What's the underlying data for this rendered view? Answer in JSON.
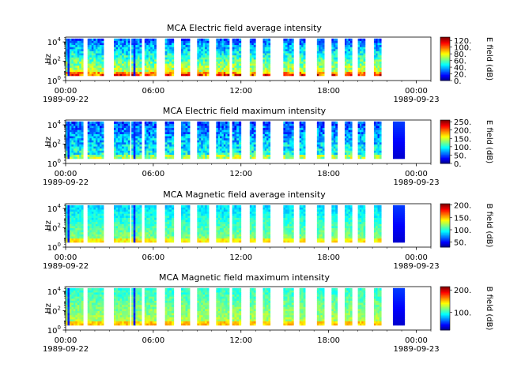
{
  "chart_data": [
    {
      "type": "heatmap",
      "title": "MCA  Electric field average intensity",
      "ylabel": "Hz",
      "yscale": "log",
      "ylim": [
        1,
        31623
      ],
      "y_ticks": [
        {
          "exp": "0"
        },
        {
          "exp": "2"
        },
        {
          "exp": "4"
        }
      ],
      "x_ticks": [
        "00:00",
        "06:00",
        "12:00",
        "18:00",
        "00:00"
      ],
      "x_dates": [
        "1989-09-22",
        "1989-09-23"
      ],
      "xlim": [
        "1989-09-22T00:00",
        "1989-09-23T01:00"
      ],
      "colorbar": {
        "label": "E field (dB)",
        "ticks": [
          "0.",
          "20.",
          "40.",
          "60.",
          "80.",
          "100.",
          "120."
        ],
        "range": [
          0,
          130
        ],
        "colormap": "jet"
      },
      "data_segments": [
        [
          0.0,
          1.2
        ],
        [
          1.5,
          2.6
        ],
        [
          3.3,
          4.4
        ],
        [
          4.5,
          5.2
        ],
        [
          5.4,
          6.2
        ],
        [
          6.8,
          7.4
        ],
        [
          7.9,
          8.5
        ],
        [
          9.0,
          9.8
        ],
        [
          10.3,
          11.2
        ],
        [
          11.4,
          12.0
        ],
        [
          12.6,
          13.0
        ],
        [
          13.5,
          14.0
        ],
        [
          14.9,
          15.6
        ],
        [
          16.0,
          16.4
        ],
        [
          17.2,
          17.7
        ],
        [
          18.2,
          18.6
        ],
        [
          19.1,
          19.6
        ],
        [
          20.0,
          20.5
        ],
        [
          21.1,
          21.6
        ]
      ]
    },
    {
      "type": "heatmap",
      "title": "MCA  Electric field maximum intensity",
      "ylabel": "Hz",
      "yscale": "log",
      "ylim": [
        1,
        31623
      ],
      "y_ticks": [
        {
          "exp": "0"
        },
        {
          "exp": "2"
        },
        {
          "exp": "4"
        }
      ],
      "x_ticks": [
        "00:00",
        "06:00",
        "12:00",
        "18:00",
        "00:00"
      ],
      "x_dates": [
        "1989-09-22",
        "1989-09-23"
      ],
      "xlim": [
        "1989-09-22T00:00",
        "1989-09-23T01:00"
      ],
      "colorbar": {
        "label": "E field (dB)",
        "ticks": [
          "0.",
          "50.",
          "100.",
          "150.",
          "200.",
          "250."
        ],
        "range": [
          0,
          260
        ],
        "colormap": "jet"
      },
      "data_segments": [
        [
          0.0,
          1.2
        ],
        [
          1.5,
          2.6
        ],
        [
          3.3,
          4.4
        ],
        [
          4.5,
          5.2
        ],
        [
          5.4,
          6.2
        ],
        [
          6.8,
          7.4
        ],
        [
          7.9,
          8.5
        ],
        [
          9.0,
          9.8
        ],
        [
          10.3,
          11.2
        ],
        [
          11.4,
          12.0
        ],
        [
          12.6,
          13.0
        ],
        [
          13.5,
          14.0
        ],
        [
          14.9,
          15.6
        ],
        [
          16.0,
          16.4
        ],
        [
          17.2,
          17.7
        ],
        [
          18.2,
          18.6
        ],
        [
          19.1,
          19.6
        ],
        [
          20.0,
          20.5
        ],
        [
          21.1,
          21.6
        ],
        [
          22.4,
          23.2
        ]
      ]
    },
    {
      "type": "heatmap",
      "title": "MCA  Magnetic field average intensity",
      "ylabel": "Hz",
      "yscale": "log",
      "ylim": [
        1,
        31623
      ],
      "y_ticks": [
        {
          "exp": "0"
        },
        {
          "exp": "2"
        },
        {
          "exp": "4"
        }
      ],
      "x_ticks": [
        "00:00",
        "06:00",
        "12:00",
        "18:00",
        "00:00"
      ],
      "x_dates": [
        "1989-09-22",
        "1989-09-23"
      ],
      "xlim": [
        "1989-09-22T00:00",
        "1989-09-23T01:00"
      ],
      "colorbar": {
        "label": "B field (dB)",
        "ticks": [
          "50.",
          "100.",
          "150.",
          "200."
        ],
        "range": [
          30,
          205
        ],
        "colormap": "jet"
      },
      "data_segments": [
        [
          0.0,
          1.2
        ],
        [
          1.5,
          2.6
        ],
        [
          3.3,
          4.4
        ],
        [
          4.5,
          5.2
        ],
        [
          5.4,
          6.2
        ],
        [
          6.8,
          7.4
        ],
        [
          7.9,
          8.5
        ],
        [
          9.0,
          9.8
        ],
        [
          10.3,
          11.2
        ],
        [
          11.4,
          12.0
        ],
        [
          12.6,
          13.0
        ],
        [
          13.5,
          14.0
        ],
        [
          14.9,
          15.6
        ],
        [
          16.0,
          16.4
        ],
        [
          17.2,
          17.7
        ],
        [
          18.2,
          18.6
        ],
        [
          19.1,
          19.6
        ],
        [
          20.0,
          20.5
        ],
        [
          21.1,
          21.6
        ],
        [
          22.4,
          23.2
        ]
      ]
    },
    {
      "type": "heatmap",
      "title": "MCA  Magnetic field maximum intensity",
      "ylabel": "Hz",
      "yscale": "log",
      "ylim": [
        1,
        31623
      ],
      "y_ticks": [
        {
          "exp": "0"
        },
        {
          "exp": "2"
        },
        {
          "exp": "4"
        }
      ],
      "x_ticks": [
        "00:00",
        "06:00",
        "12:00",
        "18:00",
        "00:00"
      ],
      "x_dates": [
        "1989-09-22",
        "1989-09-23"
      ],
      "xlim": [
        "1989-09-22T00:00",
        "1989-09-23T01:00"
      ],
      "colorbar": {
        "label": "B field (dB)",
        "ticks": [
          "100.",
          "200."
        ],
        "range": [
          20,
          215
        ],
        "colormap": "jet"
      },
      "data_segments": [
        [
          0.0,
          1.2
        ],
        [
          1.5,
          2.6
        ],
        [
          3.3,
          4.4
        ],
        [
          4.5,
          5.2
        ],
        [
          5.4,
          6.2
        ],
        [
          6.8,
          7.4
        ],
        [
          7.9,
          8.5
        ],
        [
          9.0,
          9.8
        ],
        [
          10.3,
          11.2
        ],
        [
          11.4,
          12.0
        ],
        [
          12.6,
          13.0
        ],
        [
          13.5,
          14.0
        ],
        [
          14.9,
          15.6
        ],
        [
          16.0,
          16.4
        ],
        [
          17.2,
          17.7
        ],
        [
          18.2,
          18.6
        ],
        [
          19.1,
          19.6
        ],
        [
          20.0,
          20.5
        ],
        [
          21.1,
          21.6
        ],
        [
          22.4,
          23.2
        ]
      ]
    }
  ]
}
